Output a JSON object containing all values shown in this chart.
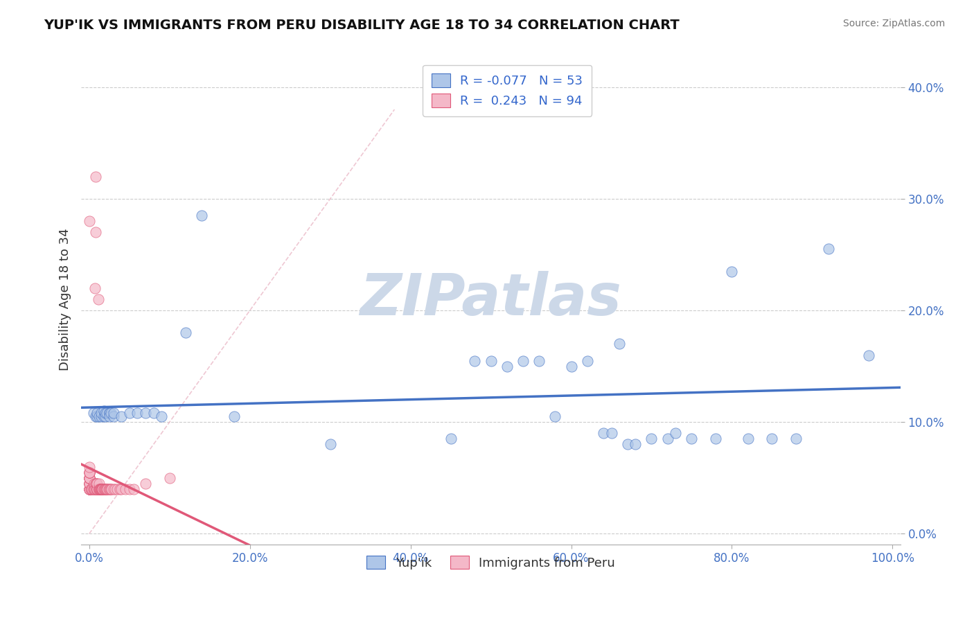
{
  "title": "YUP'IK VS IMMIGRANTS FROM PERU DISABILITY AGE 18 TO 34 CORRELATION CHART",
  "source": "Source: ZipAtlas.com",
  "xlabel": "",
  "ylabel": "Disability Age 18 to 34",
  "xlim": [
    -0.01,
    1.01
  ],
  "ylim": [
    -0.01,
    0.43
  ],
  "xticks": [
    0.0,
    0.2,
    0.4,
    0.6,
    0.8,
    1.0
  ],
  "xticklabels": [
    "0.0%",
    "20.0%",
    "40.0%",
    "60.0%",
    "80.0%",
    "100.0%"
  ],
  "yticks": [
    0.0,
    0.1,
    0.2,
    0.3,
    0.4
  ],
  "yticklabels": [
    "0.0%",
    "10.0%",
    "20.0%",
    "30.0%",
    "40.0%"
  ],
  "r_yupik": -0.077,
  "n_yupik": 53,
  "r_peru": 0.243,
  "n_peru": 94,
  "color_yupik_fill": "#aec6e8",
  "color_yupik_edge": "#4472c4",
  "color_peru_fill": "#f4b8c8",
  "color_peru_edge": "#e05878",
  "color_line_yupik": "#4472c4",
  "color_line_peru": "#e05878",
  "color_diag": "#e0a0b0",
  "watermark": "ZIPatlas",
  "watermark_color": "#ccd8e8",
  "yupik_x": [
    0.005,
    0.008,
    0.01,
    0.01,
    0.012,
    0.015,
    0.015,
    0.018,
    0.018,
    0.02,
    0.02,
    0.022,
    0.025,
    0.025,
    0.025,
    0.027,
    0.03,
    0.03,
    0.04,
    0.05,
    0.06,
    0.07,
    0.08,
    0.09,
    0.12,
    0.14,
    0.18,
    0.3,
    0.45,
    0.48,
    0.5,
    0.52,
    0.54,
    0.56,
    0.58,
    0.6,
    0.62,
    0.64,
    0.65,
    0.66,
    0.67,
    0.68,
    0.7,
    0.72,
    0.73,
    0.75,
    0.78,
    0.8,
    0.82,
    0.85,
    0.88,
    0.92,
    0.97
  ],
  "yupik_y": [
    0.108,
    0.105,
    0.105,
    0.108,
    0.105,
    0.105,
    0.108,
    0.105,
    0.11,
    0.105,
    0.108,
    0.108,
    0.108,
    0.108,
    0.105,
    0.108,
    0.105,
    0.108,
    0.105,
    0.108,
    0.108,
    0.108,
    0.108,
    0.105,
    0.18,
    0.285,
    0.105,
    0.08,
    0.085,
    0.155,
    0.155,
    0.15,
    0.155,
    0.155,
    0.105,
    0.15,
    0.155,
    0.09,
    0.09,
    0.17,
    0.08,
    0.08,
    0.085,
    0.085,
    0.09,
    0.085,
    0.085,
    0.235,
    0.085,
    0.085,
    0.085,
    0.255,
    0.16
  ],
  "peru_x": [
    0.0,
    0.0,
    0.0,
    0.0,
    0.0,
    0.0,
    0.0,
    0.0,
    0.0,
    0.0,
    0.0,
    0.0,
    0.0,
    0.0,
    0.0,
    0.0,
    0.0,
    0.0,
    0.0,
    0.0,
    0.0,
    0.0,
    0.0,
    0.0,
    0.0,
    0.0,
    0.0,
    0.0,
    0.0,
    0.0,
    0.002,
    0.003,
    0.003,
    0.004,
    0.005,
    0.005,
    0.006,
    0.006,
    0.007,
    0.007,
    0.007,
    0.008,
    0.008,
    0.008,
    0.009,
    0.009,
    0.009,
    0.009,
    0.01,
    0.01,
    0.01,
    0.01,
    0.011,
    0.011,
    0.012,
    0.012,
    0.012,
    0.013,
    0.013,
    0.013,
    0.014,
    0.014,
    0.015,
    0.015,
    0.015,
    0.016,
    0.016,
    0.016,
    0.017,
    0.017,
    0.018,
    0.018,
    0.019,
    0.02,
    0.02,
    0.021,
    0.022,
    0.022,
    0.023,
    0.024,
    0.025,
    0.026,
    0.027,
    0.028,
    0.03,
    0.032,
    0.035,
    0.038,
    0.04,
    0.045,
    0.05,
    0.055,
    0.07,
    0.1
  ],
  "peru_y": [
    0.04,
    0.04,
    0.04,
    0.04,
    0.04,
    0.04,
    0.04,
    0.04,
    0.04,
    0.045,
    0.045,
    0.045,
    0.045,
    0.045,
    0.045,
    0.05,
    0.05,
    0.05,
    0.05,
    0.05,
    0.05,
    0.05,
    0.05,
    0.055,
    0.055,
    0.055,
    0.055,
    0.055,
    0.06,
    0.28,
    0.04,
    0.04,
    0.04,
    0.04,
    0.04,
    0.04,
    0.04,
    0.045,
    0.04,
    0.04,
    0.22,
    0.27,
    0.32,
    0.045,
    0.04,
    0.045,
    0.04,
    0.045,
    0.04,
    0.04,
    0.04,
    0.045,
    0.04,
    0.21,
    0.04,
    0.04,
    0.045,
    0.04,
    0.04,
    0.04,
    0.04,
    0.04,
    0.04,
    0.04,
    0.04,
    0.04,
    0.04,
    0.04,
    0.04,
    0.04,
    0.04,
    0.04,
    0.04,
    0.04,
    0.04,
    0.04,
    0.04,
    0.04,
    0.04,
    0.04,
    0.04,
    0.04,
    0.04,
    0.04,
    0.04,
    0.04,
    0.04,
    0.04,
    0.04,
    0.04,
    0.04,
    0.04,
    0.045,
    0.05
  ]
}
